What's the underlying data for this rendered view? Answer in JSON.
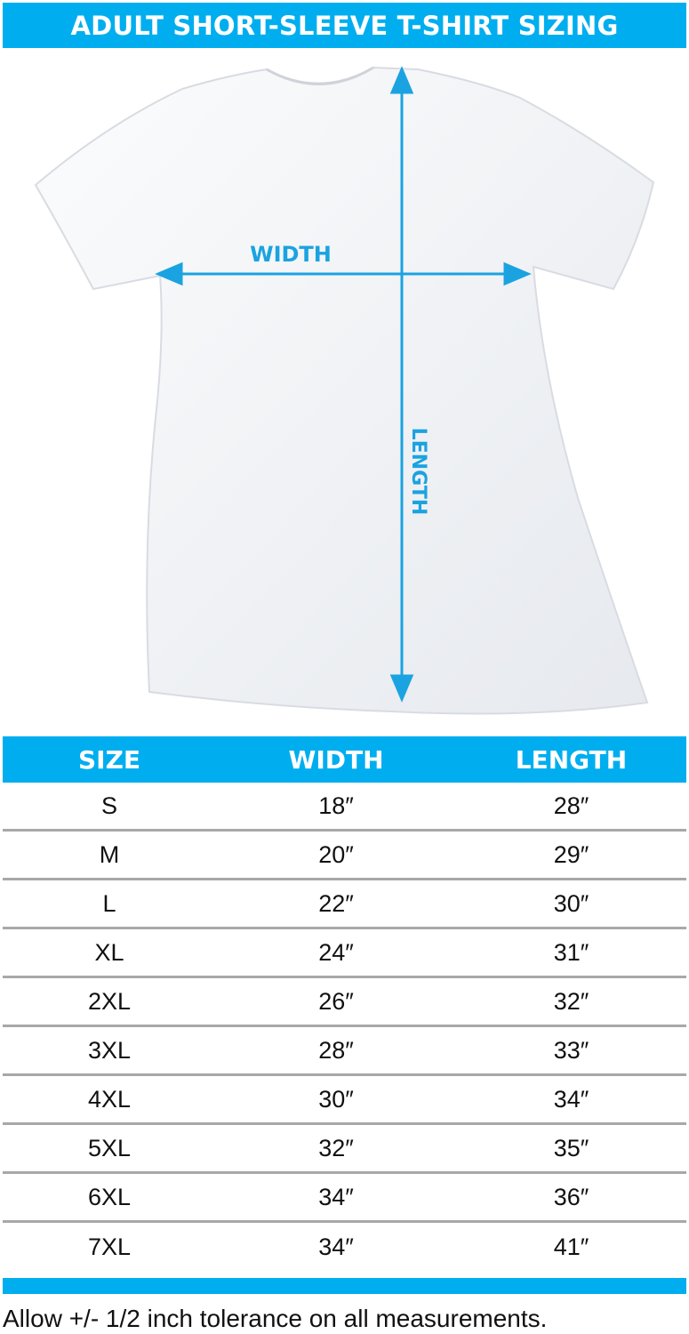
{
  "title": "ADULT SHORT-SLEEVE T-SHIRT SIZING",
  "diagram": {
    "width_label": "WIDTH",
    "length_label": "LENGTH",
    "accent_color": "#00aeef"
  },
  "table": {
    "headers": [
      "SIZE",
      "WIDTH",
      "LENGTH"
    ],
    "rows": [
      [
        "S",
        "18″",
        "28″"
      ],
      [
        "M",
        "20″",
        "29″"
      ],
      [
        "L",
        "22″",
        "30″"
      ],
      [
        "XL",
        "24″",
        "31″"
      ],
      [
        "2XL",
        "26″",
        "32″"
      ],
      [
        "3XL",
        "28″",
        "33″"
      ],
      [
        "4XL",
        "30″",
        "34″"
      ],
      [
        "5XL",
        "32″",
        "35″"
      ],
      [
        "6XL",
        "34″",
        "36″"
      ],
      [
        "7XL",
        "34″",
        "41″"
      ]
    ]
  },
  "footer": "Allow +/- 1/2 inch tolerance on all measurements."
}
